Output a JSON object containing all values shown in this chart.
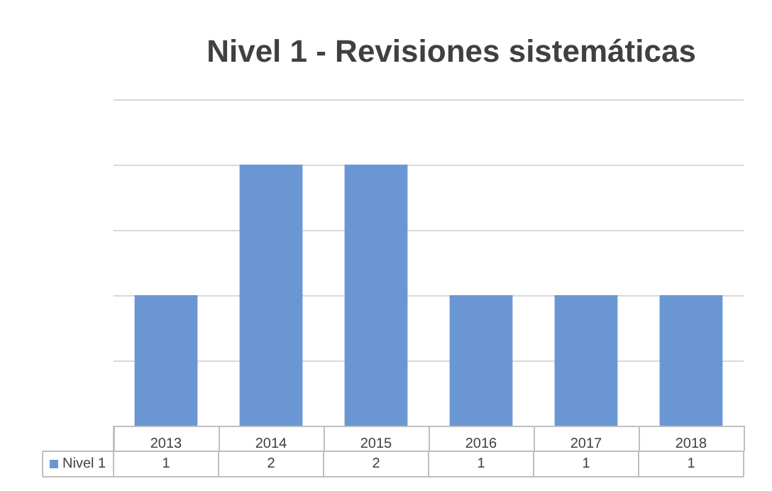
{
  "chart_data": {
    "type": "bar",
    "title": "Nivel 1 - Revisiones sistemáticas",
    "categories": [
      "2013",
      "2014",
      "2015",
      "2016",
      "2017",
      "2018"
    ],
    "series": [
      {
        "name": "Nivel 1",
        "color": "#6a97d4",
        "values": [
          1,
          2,
          2,
          1,
          1,
          1
        ]
      }
    ],
    "ylim": [
      0,
      2.5
    ],
    "yticks": [
      {
        "value": 0,
        "label": null
      },
      {
        "value": 0.5,
        "label": null
      },
      {
        "value": 1,
        "label": null
      },
      {
        "value": 1.5,
        "label": null
      },
      {
        "value": 2,
        "label": null
      },
      {
        "value": 2.5,
        "label": null
      }
    ],
    "tick_labels": "x",
    "grid": "y",
    "legend": "bottom left",
    "data_labels": true
  }
}
